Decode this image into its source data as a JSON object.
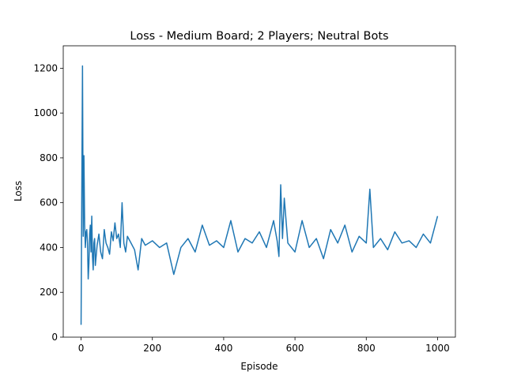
{
  "chart_data": {
    "type": "line",
    "title": "Loss - Medium Board; 2 Players; Neutral Bots",
    "xlabel": "Episode",
    "ylabel": "Loss",
    "xlim": [
      -50,
      1050
    ],
    "ylim": [
      0,
      1300
    ],
    "xticks": [
      0,
      200,
      400,
      600,
      800,
      1000
    ],
    "yticks": [
      0,
      200,
      400,
      600,
      800,
      1000,
      1200
    ],
    "grid": false,
    "legend": "none",
    "series": [
      {
        "color": "#1f77b4",
        "x": [
          0,
          2,
          4,
          6,
          8,
          10,
          12,
          14,
          16,
          18,
          20,
          22,
          24,
          26,
          28,
          30,
          32,
          34,
          36,
          38,
          40,
          45,
          50,
          55,
          60,
          65,
          70,
          75,
          80,
          85,
          90,
          95,
          100,
          105,
          110,
          115,
          120,
          125,
          130,
          140,
          150,
          160,
          170,
          180,
          200,
          220,
          240,
          260,
          280,
          300,
          320,
          340,
          360,
          380,
          400,
          420,
          440,
          460,
          480,
          500,
          520,
          540,
          550,
          555,
          560,
          565,
          570,
          580,
          600,
          620,
          640,
          660,
          680,
          700,
          720,
          740,
          760,
          780,
          800,
          810,
          820,
          840,
          860,
          880,
          900,
          920,
          940,
          960,
          980,
          1000
        ],
        "values": [
          55,
          650,
          1210,
          450,
          810,
          500,
          400,
          470,
          480,
          420,
          260,
          330,
          460,
          500,
          380,
          540,
          360,
          300,
          420,
          440,
          320,
          410,
          460,
          380,
          350,
          480,
          420,
          400,
          370,
          470,
          430,
          510,
          440,
          460,
          400,
          600,
          420,
          380,
          450,
          420,
          390,
          300,
          440,
          410,
          430,
          400,
          420,
          280,
          400,
          440,
          380,
          500,
          410,
          430,
          400,
          520,
          380,
          440,
          420,
          470,
          400,
          520,
          430,
          360,
          680,
          440,
          620,
          420,
          380,
          520,
          400,
          440,
          350,
          480,
          420,
          500,
          380,
          450,
          420,
          660,
          400,
          440,
          390,
          470,
          420,
          430,
          400,
          460,
          420,
          540
        ]
      }
    ]
  }
}
